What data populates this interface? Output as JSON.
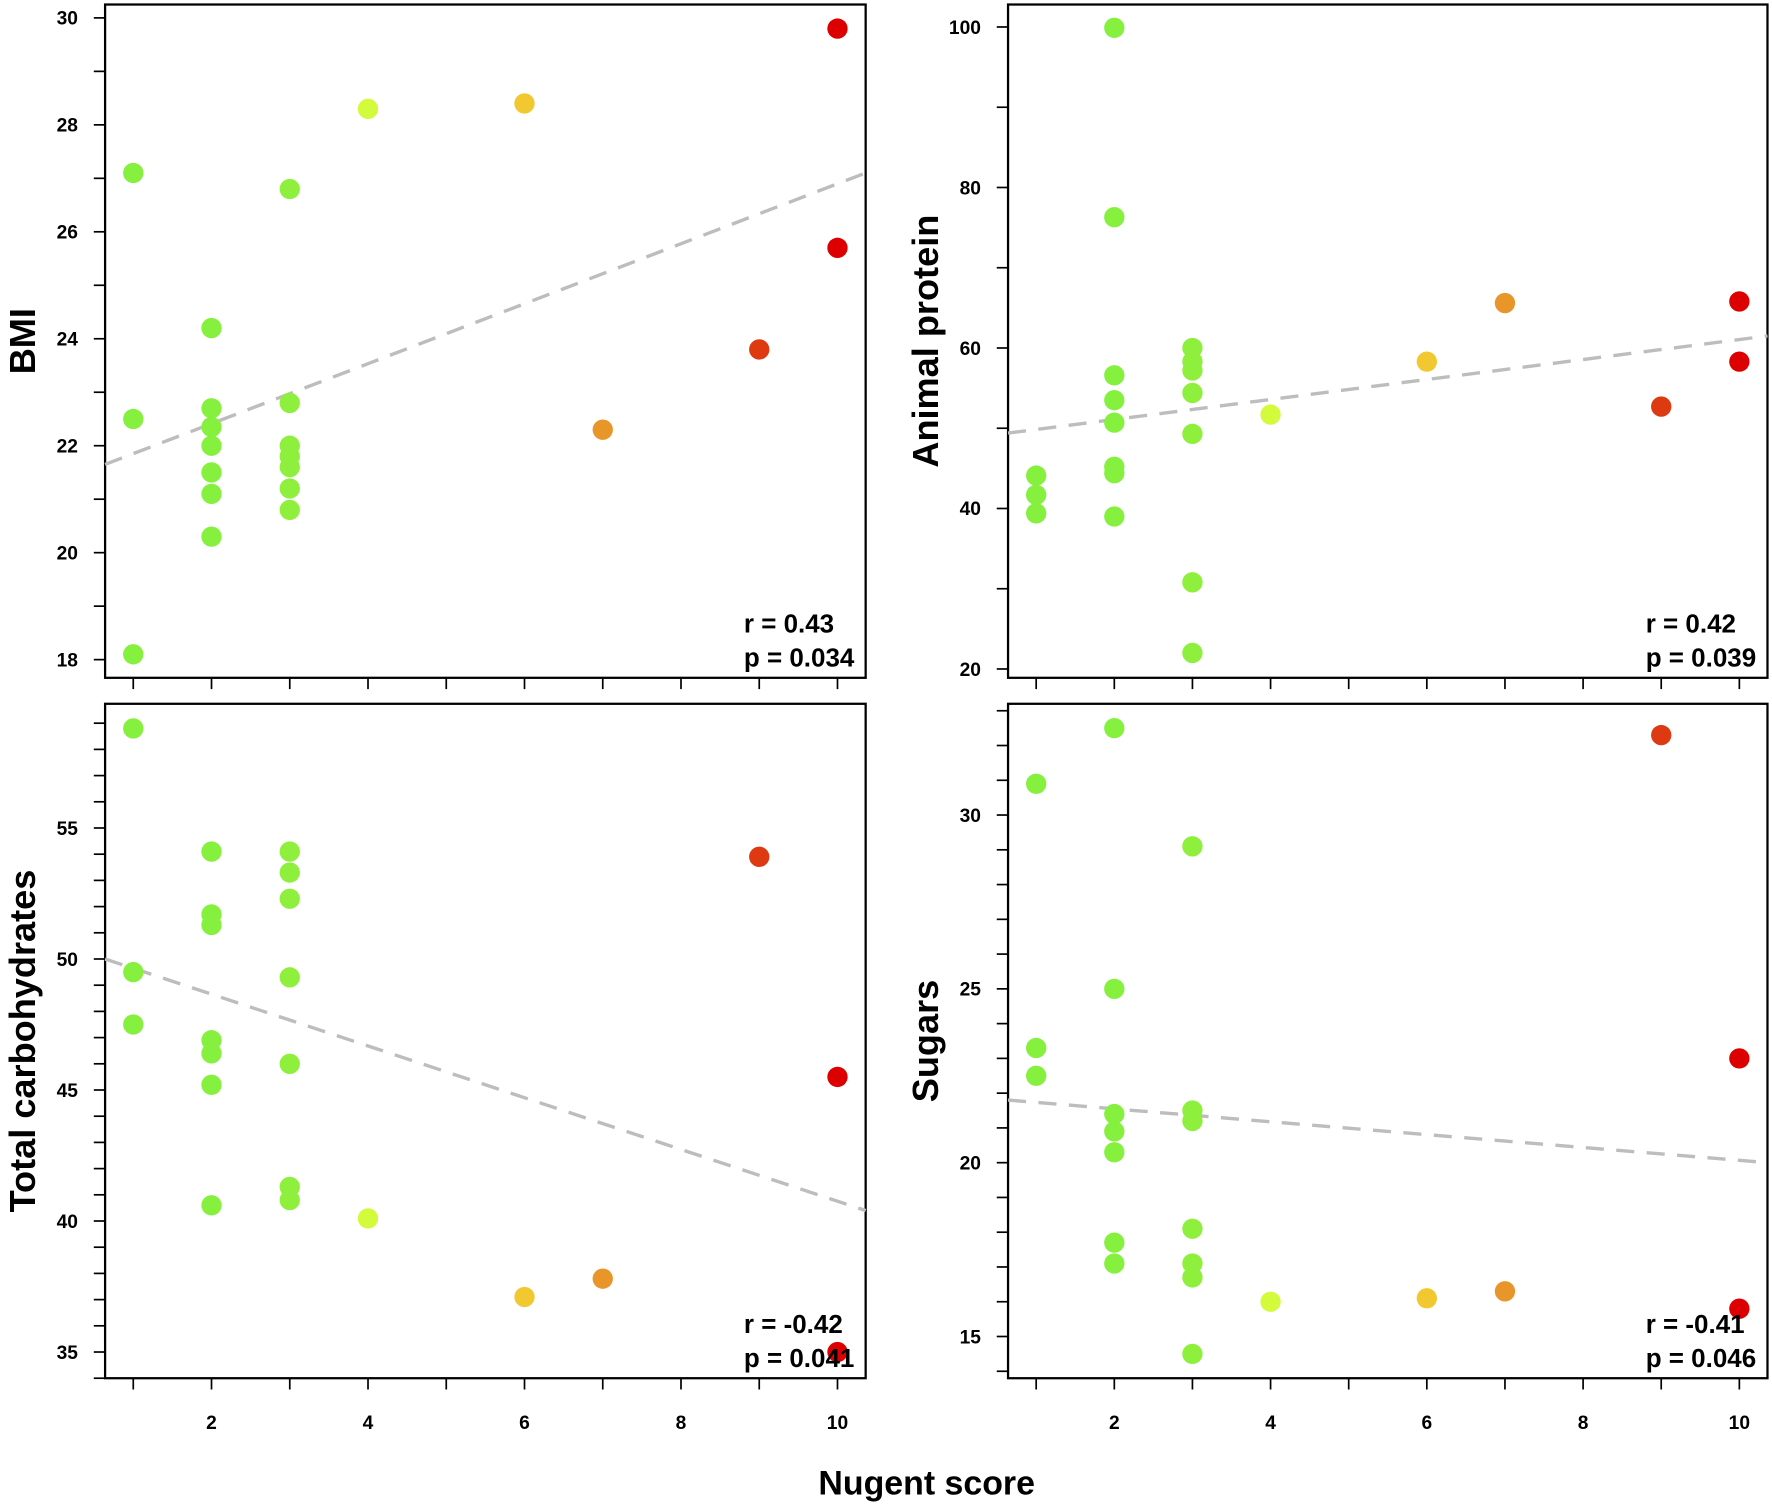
{
  "figure": {
    "xlabel": "Nugent score"
  },
  "colors": {
    "1": "#86F03E",
    "2": "#86F03E",
    "3": "#8EF03C",
    "4": "#D4FA3C",
    "6": "#F2C830",
    "7": "#E8962A",
    "9": "#DD3A12",
    "10": "#DD0000",
    "trend": "#BDBDBD"
  },
  "chart_data": [
    {
      "type": "scatter",
      "ylabel": "BMI",
      "xlim": [
        0.64,
        10.36
      ],
      "ylim": [
        17.66,
        30.25
      ],
      "yticks": [
        18,
        20,
        22,
        24,
        26,
        28,
        30
      ],
      "yminor": 1,
      "xticks": [
        2,
        4,
        6,
        8,
        10
      ],
      "showXLabels": false,
      "x": [
        1,
        1,
        1,
        2,
        2,
        2,
        2,
        2,
        2,
        2,
        3,
        3,
        3,
        3,
        3,
        3,
        3,
        4,
        6,
        7,
        9,
        10,
        10
      ],
      "y": [
        27.1,
        22.5,
        18.1,
        24.2,
        22.7,
        22.35,
        22.0,
        21.5,
        21.1,
        20.3,
        26.8,
        22.8,
        22.0,
        21.8,
        21.6,
        21.2,
        20.8,
        28.3,
        28.4,
        22.3,
        23.8,
        29.8,
        25.7
      ],
      "trend": [
        [
          0.64,
          21.65
        ],
        [
          10.36,
          27.1
        ]
      ],
      "r": "r = 0.43",
      "p": "p = 0.034"
    },
    {
      "type": "scatter",
      "ylabel": "Animal protein",
      "xlim": [
        0.64,
        10.36
      ],
      "ylim": [
        18.9,
        102.8
      ],
      "yticks": [
        20,
        40,
        60,
        80,
        100
      ],
      "yminor": 10,
      "xticks": [
        2,
        4,
        6,
        8,
        10
      ],
      "showXLabels": false,
      "x": [
        1,
        1,
        1,
        2,
        2,
        2,
        2,
        2,
        2,
        2,
        2,
        3,
        3,
        3,
        3,
        3,
        3,
        3,
        4,
        6,
        7,
        9,
        10,
        10
      ],
      "y": [
        44.1,
        41.7,
        39.4,
        99.9,
        76.3,
        56.6,
        53.5,
        50.7,
        45.2,
        44.4,
        39.0,
        60.0,
        58.3,
        57.2,
        54.4,
        49.3,
        30.8,
        22.0,
        51.7,
        58.3,
        65.6,
        52.7,
        65.8,
        58.3
      ],
      "trend": [
        [
          0.64,
          49.4
        ],
        [
          10.36,
          61.5
        ]
      ],
      "r": "r = 0.42",
      "p": "p = 0.039"
    },
    {
      "type": "scatter",
      "ylabel": "Total carbohydrates",
      "xlim": [
        0.64,
        10.36
      ],
      "ylim": [
        34.0,
        59.74
      ],
      "yticks": [
        35,
        40,
        45,
        50,
        55
      ],
      "yminor": 1,
      "xticks": [
        2,
        4,
        6,
        8,
        10
      ],
      "showXLabels": true,
      "x": [
        1,
        1,
        1,
        2,
        2,
        2,
        2,
        2,
        2,
        2,
        3,
        3,
        3,
        3,
        3,
        3,
        3,
        4,
        6,
        7,
        9,
        10,
        10
      ],
      "y": [
        58.8,
        49.5,
        47.5,
        54.1,
        51.7,
        51.3,
        46.9,
        46.4,
        45.2,
        40.6,
        54.1,
        53.3,
        52.3,
        49.3,
        46.0,
        41.3,
        40.8,
        40.1,
        37.1,
        37.8,
        53.9,
        45.5,
        35.0
      ],
      "trend": [
        [
          0.64,
          50.0
        ],
        [
          10.36,
          40.4
        ]
      ],
      "r": "r = -0.42",
      "p": "p = 0.041"
    },
    {
      "type": "scatter",
      "ylabel": "Sugars",
      "xlim": [
        0.64,
        10.36
      ],
      "ylim": [
        13.8,
        33.2
      ],
      "yticks": [
        15,
        20,
        25,
        30
      ],
      "yminor": 1,
      "xticks": [
        2,
        4,
        6,
        8,
        10
      ],
      "showXLabels": true,
      "x": [
        1,
        1,
        1,
        2,
        2,
        2,
        2,
        2,
        2,
        2,
        3,
        3,
        3,
        3,
        3,
        3,
        3,
        4,
        6,
        7,
        9,
        10,
        10
      ],
      "y": [
        30.9,
        23.3,
        22.5,
        32.5,
        25.0,
        21.4,
        20.9,
        20.3,
        17.7,
        17.1,
        29.1,
        21.5,
        21.2,
        18.1,
        17.1,
        16.7,
        14.5,
        16.0,
        16.1,
        16.3,
        32.3,
        23.0,
        15.8
      ],
      "trend": [
        [
          0.64,
          21.8
        ],
        [
          10.36,
          20.0
        ]
      ],
      "r": "r = -0.41",
      "p": "p = 0.046"
    }
  ]
}
